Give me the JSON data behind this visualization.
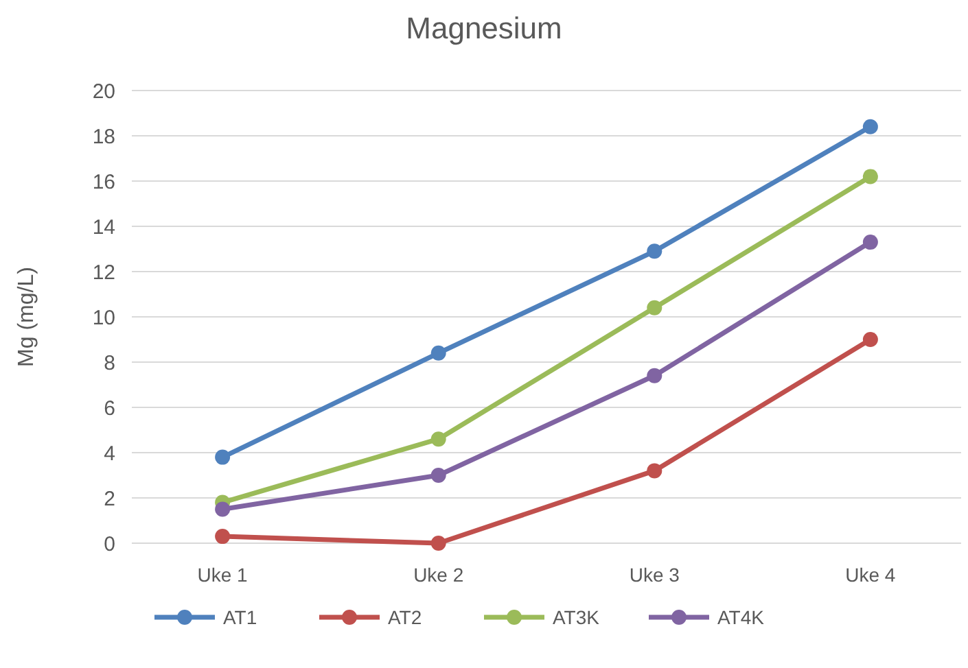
{
  "chart_data": {
    "type": "line",
    "title": "Magnesium",
    "ylabel": "Mg (mg/L)",
    "categories": [
      "Uke 1",
      "Uke 2",
      "Uke 3",
      "Uke 4"
    ],
    "series": [
      {
        "name": "AT1",
        "color": "#4f81bd",
        "values": [
          3.8,
          8.4,
          12.9,
          18.4
        ]
      },
      {
        "name": "AT2",
        "color": "#c0504d",
        "values": [
          0.3,
          0,
          3.2,
          9.0
        ]
      },
      {
        "name": "AT3K",
        "color": "#9bbb59",
        "values": [
          1.8,
          4.6,
          10.4,
          16.2
        ]
      },
      {
        "name": "AT4K",
        "color": "#8064a2",
        "values": [
          1.5,
          3.0,
          7.4,
          13.3
        ]
      }
    ],
    "ylim": [
      0,
      20
    ],
    "yticks": [
      0,
      2,
      4,
      6,
      8,
      10,
      12,
      14,
      16,
      18,
      20
    ],
    "grid": "y",
    "legend": "bottom",
    "marker": "circle",
    "line_style": "solid"
  }
}
